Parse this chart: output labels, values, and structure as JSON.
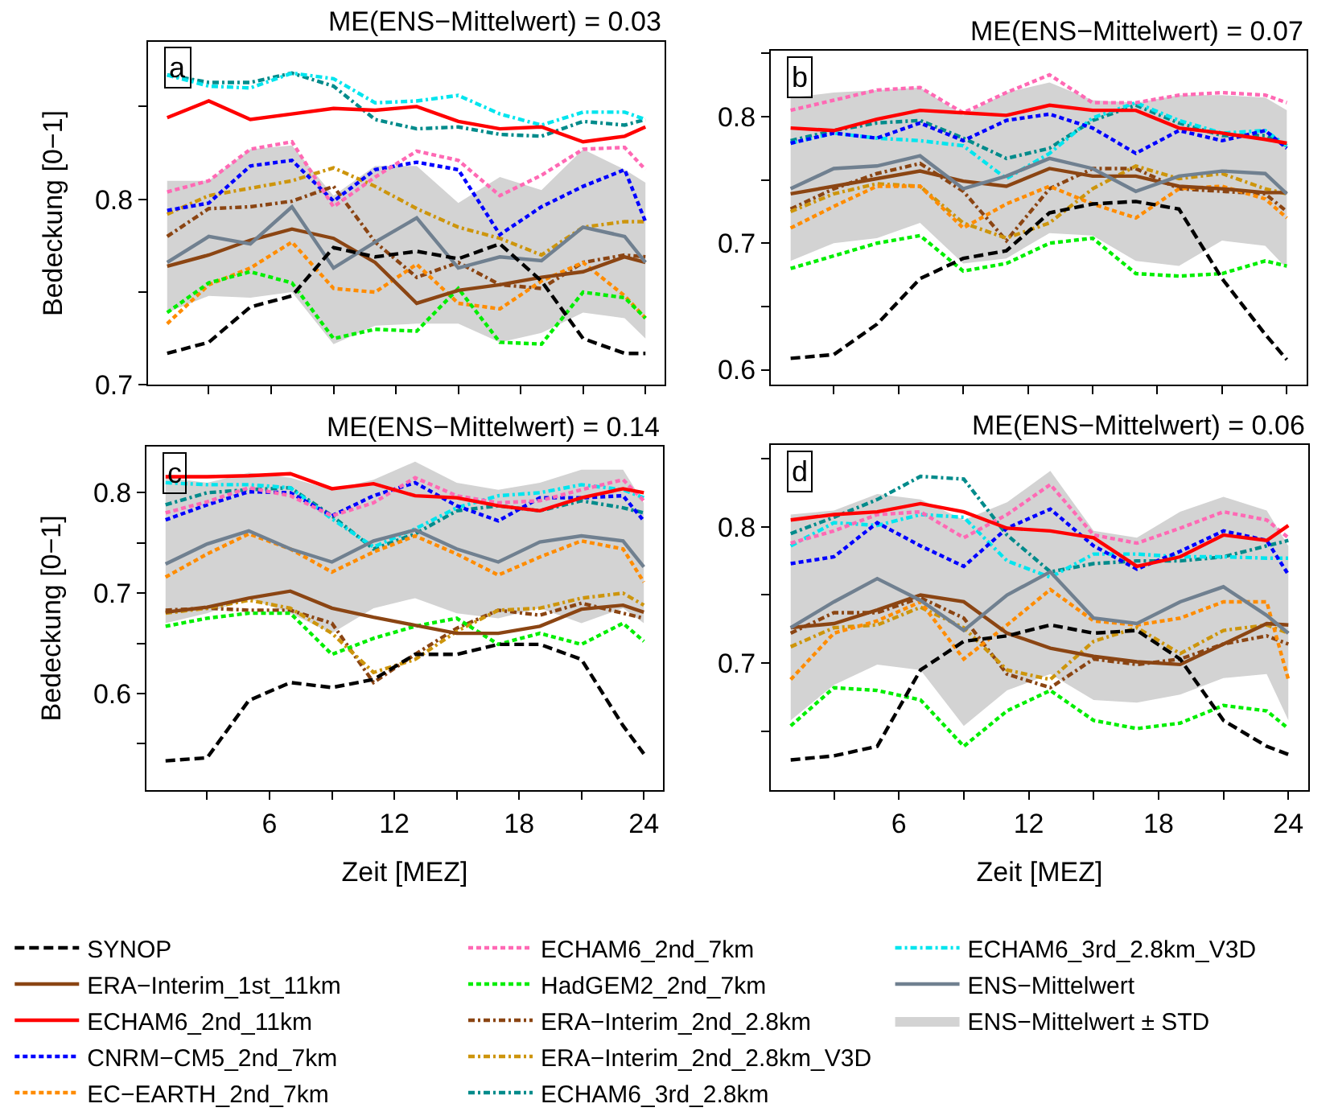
{
  "chart_data": [
    {
      "type": "line",
      "title": "ME(ENS−Mittelwert) = 0.03",
      "ylabel": "Bedeckung [0−1]",
      "annotations": [
        "a",
        "ENS−Mittelwert ± STD"
      ],
      "legend": "bottom",
      "tick_labels": "y",
      "x": [
        1,
        3,
        5,
        7,
        9,
        11,
        13,
        15,
        17,
        19,
        21,
        23,
        24
      ],
      "xlim": [
        0.08,
        24.92
      ],
      "ylim": [
        0.7,
        0.885
      ],
      "xticks": [
        {
          "value": 3,
          "label": null
        },
        {
          "value": 6,
          "label": null
        },
        {
          "value": 9,
          "label": null
        },
        {
          "value": 12,
          "label": null
        },
        {
          "value": 15,
          "label": null
        },
        {
          "value": 18,
          "label": null
        },
        {
          "value": 21,
          "label": null
        },
        {
          "value": 24,
          "label": null
        }
      ],
      "yticks": [
        0.7,
        {
          "value": 0.75,
          "label": null
        },
        0.8,
        {
          "value": 0.85,
          "label": null
        }
      ],
      "series": [
        {
          "name": "SYNOP",
          "color": "#000000",
          "line_style": "longdash",
          "values": [
            0.717,
            0.723,
            0.742,
            0.748,
            0.774,
            0.769,
            0.772,
            0.768,
            0.776,
            0.756,
            0.725,
            0.717,
            0.717
          ]
        },
        {
          "name": "ERA−Interim_1st_11km",
          "color": "#8b4513",
          "line_style": "solid",
          "values": [
            0.764,
            0.77,
            0.778,
            0.784,
            0.779,
            0.766,
            0.744,
            0.751,
            0.754,
            0.758,
            0.761,
            0.769,
            0.766
          ]
        },
        {
          "name": "ECHAM6_2nd_11km",
          "color": "#ff0000",
          "line_style": "solid",
          "values": [
            0.844,
            0.853,
            0.843,
            0.846,
            0.849,
            0.848,
            0.85,
            0.842,
            0.838,
            0.839,
            0.831,
            0.834,
            0.839
          ]
        },
        {
          "name": "CNRM−CM5_2nd_7km",
          "color": "#0000ff",
          "line_style": "dashed",
          "values": [
            0.794,
            0.798,
            0.818,
            0.821,
            0.799,
            0.816,
            0.82,
            0.816,
            0.781,
            0.796,
            0.807,
            0.816,
            0.788
          ]
        },
        {
          "name": "EC−EARTH_2nd_7km",
          "color": "#ff8c00",
          "line_style": "dashed",
          "values": [
            0.733,
            0.754,
            0.763,
            0.777,
            0.752,
            0.75,
            0.765,
            0.744,
            0.741,
            0.756,
            0.766,
            0.748,
            0.736
          ]
        },
        {
          "name": "ECHAM6_2nd_7km",
          "color": "#ff69b4",
          "line_style": "dashed",
          "values": [
            0.804,
            0.81,
            0.827,
            0.831,
            0.796,
            0.812,
            0.826,
            0.821,
            0.802,
            0.813,
            0.827,
            0.828,
            0.816
          ]
        },
        {
          "name": "HadGEM2_2nd_7km",
          "color": "#00ee00",
          "line_style": "dashed",
          "values": [
            0.739,
            0.755,
            0.761,
            0.755,
            0.725,
            0.73,
            0.729,
            0.752,
            0.723,
            0.722,
            0.75,
            0.747,
            0.736
          ]
        },
        {
          "name": "ERA−Interim_2nd_2.8km",
          "color": "#8b4513",
          "line_style": "dashdot",
          "values": [
            0.78,
            0.795,
            0.796,
            0.799,
            0.807,
            0.777,
            0.758,
            0.766,
            0.754,
            0.752,
            0.766,
            0.77,
            0.769
          ]
        },
        {
          "name": "ERA−Interim_2nd_2.8km_V3D",
          "color": "#cd950c",
          "line_style": "dashdot",
          "values": [
            0.792,
            0.802,
            0.806,
            0.81,
            0.817,
            0.807,
            0.795,
            0.785,
            0.779,
            0.77,
            0.785,
            0.788,
            0.788
          ]
        },
        {
          "name": "ECHAM6_3rd_2.8km",
          "color": "#008b8b",
          "line_style": "dashdot",
          "values": [
            0.867,
            0.863,
            0.863,
            0.868,
            0.861,
            0.843,
            0.838,
            0.839,
            0.835,
            0.834,
            0.842,
            0.84,
            0.843
          ]
        },
        {
          "name": "ECHAM6_3rd_2.8km_V3D",
          "color": "#00e5ee",
          "line_style": "dashdot",
          "values": [
            0.867,
            0.861,
            0.86,
            0.868,
            0.865,
            0.852,
            0.853,
            0.856,
            0.846,
            0.84,
            0.847,
            0.847,
            0.843
          ]
        },
        {
          "name": "ENS−Mittelwert",
          "color": "#708090",
          "line_style": "solid",
          "values": [
            0.766,
            0.78,
            0.776,
            0.796,
            0.763,
            0.777,
            0.79,
            0.763,
            0.769,
            0.767,
            0.785,
            0.78,
            0.766
          ],
          "lower": [
            0.739,
            0.748,
            0.747,
            0.75,
            0.722,
            0.732,
            0.733,
            0.733,
            0.723,
            0.728,
            0.739,
            0.736,
            0.725
          ],
          "upper": [
            0.81,
            0.81,
            0.827,
            0.829,
            0.802,
            0.818,
            0.818,
            0.798,
            0.812,
            0.805,
            0.827,
            0.816,
            0.809
          ]
        }
      ]
    },
    {
      "type": "line",
      "title": "ME(ENS−Mittelwert) = 0.07",
      "annotations": [
        "b"
      ],
      "tick_labels": "y",
      "x": [
        1,
        3,
        5,
        7,
        9,
        11,
        13,
        15,
        17,
        19,
        21,
        23,
        24
      ],
      "xlim": [
        0.08,
        24.92
      ],
      "ylim": [
        0.588,
        0.852
      ],
      "xticks": [
        {
          "value": 3,
          "label": null
        },
        {
          "value": 6,
          "label": null
        },
        {
          "value": 9,
          "label": null
        },
        {
          "value": 12,
          "label": null
        },
        {
          "value": 15,
          "label": null
        },
        {
          "value": 18,
          "label": null
        },
        {
          "value": 21,
          "label": null
        },
        {
          "value": 24,
          "label": null
        }
      ],
      "yticks": [
        0.6,
        {
          "value": 0.65,
          "label": null
        },
        0.7,
        {
          "value": 0.75,
          "label": null
        },
        0.8,
        {
          "value": 0.85,
          "label": null
        }
      ],
      "series": [
        {
          "color": "#000000",
          "line_style": "longdash",
          "values": [
            0.609,
            0.612,
            0.636,
            0.672,
            0.688,
            0.694,
            0.724,
            0.731,
            0.733,
            0.727,
            0.672,
            0.628,
            0.608
          ]
        },
        {
          "color": "#8b4513",
          "line_style": "solid",
          "values": [
            0.739,
            0.745,
            0.751,
            0.757,
            0.749,
            0.745,
            0.759,
            0.753,
            0.753,
            0.745,
            0.743,
            0.74,
            0.74
          ]
        },
        {
          "color": "#ff0000",
          "line_style": "solid",
          "values": [
            0.791,
            0.789,
            0.798,
            0.805,
            0.803,
            0.801,
            0.809,
            0.805,
            0.805,
            0.791,
            0.787,
            0.782,
            0.779
          ]
        },
        {
          "color": "#0000ff",
          "line_style": "dashed",
          "values": [
            0.779,
            0.787,
            0.783,
            0.795,
            0.781,
            0.797,
            0.802,
            0.791,
            0.771,
            0.789,
            0.781,
            0.789,
            0.775
          ]
        },
        {
          "color": "#ff8c00",
          "line_style": "dashed",
          "values": [
            0.712,
            0.729,
            0.745,
            0.745,
            0.712,
            0.731,
            0.745,
            0.731,
            0.72,
            0.743,
            0.745,
            0.735,
            0.72
          ]
        },
        {
          "color": "#ff69b4",
          "line_style": "dashed",
          "values": [
            0.805,
            0.813,
            0.821,
            0.823,
            0.803,
            0.819,
            0.833,
            0.811,
            0.811,
            0.817,
            0.819,
            0.817,
            0.811
          ]
        },
        {
          "color": "#00ee00",
          "line_style": "dashed",
          "values": [
            0.68,
            0.69,
            0.7,
            0.706,
            0.678,
            0.684,
            0.7,
            0.704,
            0.676,
            0.674,
            0.676,
            0.686,
            0.682
          ]
        },
        {
          "color": "#8b4513",
          "line_style": "dashdot",
          "values": [
            0.727,
            0.743,
            0.755,
            0.763,
            0.741,
            0.702,
            0.743,
            0.759,
            0.759,
            0.743,
            0.741,
            0.739,
            0.725
          ]
        },
        {
          "color": "#cd950c",
          "line_style": "dashdot",
          "values": [
            0.725,
            0.739,
            0.747,
            0.745,
            0.716,
            0.704,
            0.716,
            0.743,
            0.761,
            0.751,
            0.755,
            0.743,
            0.739
          ]
        },
        {
          "color": "#008b8b",
          "line_style": "dashdot",
          "values": [
            0.781,
            0.789,
            0.795,
            0.797,
            0.783,
            0.767,
            0.775,
            0.797,
            0.809,
            0.795,
            0.785,
            0.785,
            0.777
          ]
        },
        {
          "color": "#00e5ee",
          "line_style": "dashdot",
          "values": [
            0.779,
            0.787,
            0.783,
            0.781,
            0.777,
            0.751,
            0.771,
            0.799,
            0.811,
            0.797,
            0.787,
            0.789,
            0.777
          ]
        },
        {
          "color": "#708090",
          "line_style": "solid",
          "values": [
            0.743,
            0.759,
            0.761,
            0.769,
            0.743,
            0.753,
            0.767,
            0.759,
            0.741,
            0.753,
            0.757,
            0.755,
            0.739
          ],
          "lower": [
            0.686,
            0.7,
            0.704,
            0.716,
            0.684,
            0.688,
            0.708,
            0.706,
            0.686,
            0.682,
            0.702,
            0.698,
            0.68
          ],
          "upper": [
            0.815,
            0.819,
            0.821,
            0.823,
            0.801,
            0.819,
            0.827,
            0.813,
            0.811,
            0.817,
            0.817,
            0.815,
            0.805
          ]
        }
      ]
    },
    {
      "type": "line",
      "title": "ME(ENS−Mittelwert) = 0.14",
      "ylabel": "Bedeckung [0−1]",
      "xlabel": "Zeit [MEZ]",
      "annotations": [
        "c"
      ],
      "x": [
        1,
        3,
        5,
        7,
        9,
        11,
        13,
        15,
        17,
        19,
        21,
        23,
        24
      ],
      "xlim": [
        0.08,
        24.92
      ],
      "ylim": [
        0.504,
        0.846
      ],
      "xticks": [
        {
          "value": 3,
          "label": null
        },
        6,
        {
          "value": 9,
          "label": null
        },
        12,
        {
          "value": 15,
          "label": null
        },
        18,
        {
          "value": 21,
          "label": null
        },
        24
      ],
      "yticks": [
        {
          "value": 0.55,
          "label": null
        },
        0.6,
        {
          "value": 0.65,
          "label": null
        },
        0.7,
        {
          "value": 0.75,
          "label": null
        },
        0.8
      ],
      "series": [
        {
          "color": "#000000",
          "line_style": "longdash",
          "values": [
            0.533,
            0.536,
            0.593,
            0.611,
            0.606,
            0.614,
            0.639,
            0.639,
            0.649,
            0.649,
            0.634,
            0.568,
            0.54
          ]
        },
        {
          "color": "#8b4513",
          "line_style": "solid",
          "values": [
            0.681,
            0.686,
            0.695,
            0.702,
            0.685,
            0.676,
            0.668,
            0.66,
            0.66,
            0.667,
            0.684,
            0.688,
            0.681
          ]
        },
        {
          "color": "#ff0000",
          "line_style": "solid",
          "values": [
            0.816,
            0.816,
            0.817,
            0.819,
            0.804,
            0.809,
            0.797,
            0.795,
            0.787,
            0.782,
            0.795,
            0.804,
            0.8
          ]
        },
        {
          "color": "#0000ff",
          "line_style": "dashed",
          "values": [
            0.773,
            0.788,
            0.801,
            0.8,
            0.777,
            0.797,
            0.81,
            0.787,
            0.772,
            0.795,
            0.795,
            0.797,
            0.772
          ]
        },
        {
          "color": "#ff8c00",
          "line_style": "dashed",
          "values": [
            0.716,
            0.739,
            0.759,
            0.744,
            0.721,
            0.741,
            0.757,
            0.739,
            0.718,
            0.736,
            0.752,
            0.744,
            0.711
          ]
        },
        {
          "color": "#ff69b4",
          "line_style": "dashed",
          "values": [
            0.78,
            0.791,
            0.805,
            0.797,
            0.777,
            0.79,
            0.815,
            0.797,
            0.79,
            0.792,
            0.803,
            0.813,
            0.792
          ]
        },
        {
          "color": "#00ee00",
          "line_style": "dashed",
          "values": [
            0.667,
            0.675,
            0.68,
            0.68,
            0.639,
            0.655,
            0.667,
            0.675,
            0.649,
            0.66,
            0.649,
            0.67,
            0.652
          ]
        },
        {
          "color": "#8b4513",
          "line_style": "dashdot",
          "values": [
            0.683,
            0.685,
            0.683,
            0.683,
            0.67,
            0.611,
            0.639,
            0.665,
            0.683,
            0.678,
            0.69,
            0.68,
            0.675
          ]
        },
        {
          "color": "#cd950c",
          "line_style": "dashdot",
          "values": [
            0.68,
            0.685,
            0.693,
            0.685,
            0.66,
            0.621,
            0.634,
            0.662,
            0.683,
            0.685,
            0.695,
            0.7,
            0.688
          ]
        },
        {
          "color": "#008b8b",
          "line_style": "dashdot",
          "values": [
            0.788,
            0.8,
            0.803,
            0.805,
            0.777,
            0.744,
            0.759,
            0.782,
            0.787,
            0.782,
            0.792,
            0.785,
            0.78
          ]
        },
        {
          "color": "#00e5ee",
          "line_style": "dashdot",
          "values": [
            0.81,
            0.808,
            0.808,
            0.805,
            0.774,
            0.746,
            0.764,
            0.785,
            0.797,
            0.8,
            0.808,
            0.803,
            0.795
          ]
        },
        {
          "color": "#708090",
          "line_style": "solid",
          "values": [
            0.729,
            0.749,
            0.762,
            0.744,
            0.731,
            0.752,
            0.763,
            0.744,
            0.731,
            0.751,
            0.757,
            0.752,
            0.726
          ],
          "lower": [
            0.67,
            0.68,
            0.695,
            0.68,
            0.66,
            0.685,
            0.695,
            0.68,
            0.675,
            0.685,
            0.67,
            0.685,
            0.67
          ],
          "upper": [
            0.815,
            0.81,
            0.82,
            0.815,
            0.803,
            0.813,
            0.831,
            0.81,
            0.803,
            0.81,
            0.823,
            0.823,
            0.79
          ]
        }
      ]
    },
    {
      "type": "line",
      "title": "ME(ENS−Mittelwert) = 0.06",
      "xlabel": "Zeit [MEZ]",
      "annotations": [
        "d"
      ],
      "x": [
        1,
        3,
        5,
        7,
        9,
        11,
        13,
        15,
        17,
        19,
        21,
        23,
        24
      ],
      "xlim": [
        0.08,
        24.92
      ],
      "ylim": [
        0.607,
        0.86
      ],
      "xticks": [
        {
          "value": 3,
          "label": null
        },
        6,
        {
          "value": 9,
          "label": null
        },
        12,
        {
          "value": 15,
          "label": null
        },
        18,
        {
          "value": 21,
          "label": null
        },
        24
      ],
      "yticks": [
        {
          "value": 0.65,
          "label": null
        },
        0.7,
        {
          "value": 0.75,
          "label": null
        },
        0.8,
        {
          "value": 0.85,
          "label": null
        }
      ],
      "series": [
        {
          "color": "#000000",
          "line_style": "longdash",
          "values": [
            0.629,
            0.632,
            0.639,
            0.695,
            0.716,
            0.72,
            0.728,
            0.722,
            0.724,
            0.703,
            0.658,
            0.639,
            0.633
          ]
        },
        {
          "color": "#8b4513",
          "line_style": "solid",
          "values": [
            0.726,
            0.729,
            0.739,
            0.75,
            0.745,
            0.722,
            0.711,
            0.705,
            0.701,
            0.699,
            0.714,
            0.729,
            0.728
          ]
        },
        {
          "color": "#ff0000",
          "line_style": "solid",
          "values": [
            0.805,
            0.809,
            0.811,
            0.817,
            0.811,
            0.799,
            0.797,
            0.792,
            0.771,
            0.778,
            0.794,
            0.79,
            0.801
          ]
        },
        {
          "color": "#0000ff",
          "line_style": "dashed",
          "values": [
            0.773,
            0.778,
            0.803,
            0.786,
            0.771,
            0.799,
            0.813,
            0.786,
            0.769,
            0.782,
            0.797,
            0.79,
            0.765
          ]
        },
        {
          "color": "#ff8c00",
          "line_style": "dashed",
          "values": [
            0.688,
            0.722,
            0.731,
            0.745,
            0.703,
            0.728,
            0.754,
            0.731,
            0.728,
            0.733,
            0.745,
            0.745,
            0.688
          ]
        },
        {
          "color": "#ff69b4",
          "line_style": "dashed",
          "values": [
            0.788,
            0.797,
            0.809,
            0.811,
            0.792,
            0.809,
            0.831,
            0.794,
            0.788,
            0.799,
            0.811,
            0.805,
            0.792
          ]
        },
        {
          "color": "#00ee00",
          "line_style": "dashed",
          "values": [
            0.654,
            0.682,
            0.68,
            0.673,
            0.639,
            0.665,
            0.68,
            0.658,
            0.652,
            0.656,
            0.669,
            0.665,
            0.652
          ]
        },
        {
          "color": "#8b4513",
          "line_style": "dashdot",
          "values": [
            0.722,
            0.737,
            0.737,
            0.748,
            0.733,
            0.692,
            0.682,
            0.703,
            0.699,
            0.703,
            0.714,
            0.72,
            0.714
          ]
        },
        {
          "color": "#cd950c",
          "line_style": "dashdot",
          "values": [
            0.712,
            0.726,
            0.728,
            0.741,
            0.726,
            0.695,
            0.688,
            0.716,
            0.726,
            0.707,
            0.724,
            0.728,
            0.722
          ]
        },
        {
          "color": "#008b8b",
          "line_style": "dashdot",
          "values": [
            0.795,
            0.807,
            0.82,
            0.837,
            0.835,
            0.794,
            0.767,
            0.773,
            0.775,
            0.775,
            0.778,
            0.786,
            0.79
          ]
        },
        {
          "color": "#00e5ee",
          "line_style": "dashdot",
          "values": [
            0.786,
            0.803,
            0.801,
            0.809,
            0.807,
            0.775,
            0.763,
            0.78,
            0.78,
            0.778,
            0.778,
            0.777,
            0.777
          ]
        },
        {
          "color": "#708090",
          "line_style": "solid",
          "values": [
            0.726,
            0.745,
            0.762,
            0.746,
            0.724,
            0.75,
            0.767,
            0.733,
            0.729,
            0.745,
            0.756,
            0.735,
            0.722
          ],
          "lower": [
            0.658,
            0.684,
            0.699,
            0.695,
            0.654,
            0.68,
            0.692,
            0.673,
            0.671,
            0.677,
            0.689,
            0.692,
            0.658
          ],
          "upper": [
            0.809,
            0.812,
            0.824,
            0.82,
            0.805,
            0.818,
            0.841,
            0.797,
            0.792,
            0.811,
            0.822,
            0.812,
            0.786
          ]
        }
      ]
    }
  ]
}
